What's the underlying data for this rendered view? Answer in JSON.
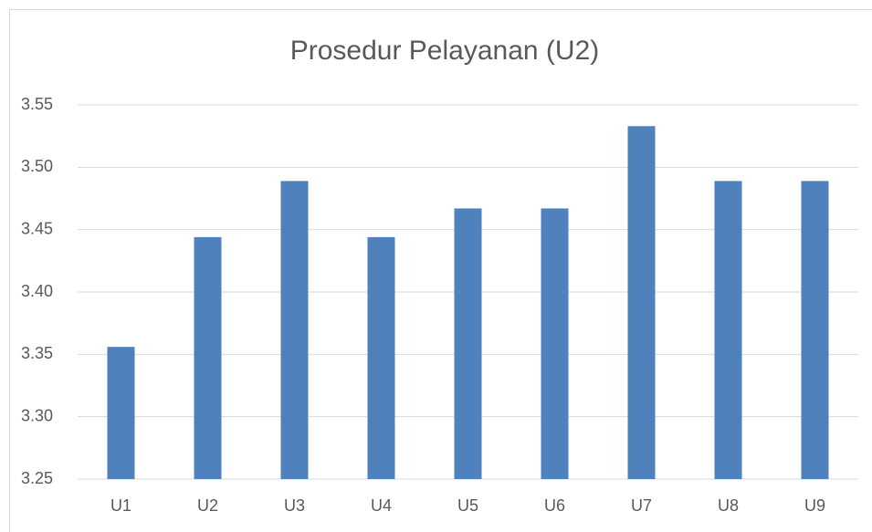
{
  "chart_data": {
    "type": "bar",
    "title": "Prosedur Pelayanan (U2)",
    "categories": [
      "U1",
      "U2",
      "U3",
      "U4",
      "U5",
      "U6",
      "U7",
      "U8",
      "U9"
    ],
    "values": [
      3.356,
      3.444,
      3.489,
      3.444,
      3.467,
      3.467,
      3.533,
      3.489,
      3.489
    ],
    "color": "#4f81bd",
    "ylim": [
      3.25,
      3.55
    ],
    "yticks": [
      3.25,
      {
        "value": 3.3,
        "label": "3.30"
      },
      3.35,
      {
        "value": 3.4,
        "label": "3.40"
      },
      3.45,
      {
        "value": 3.5,
        "label": "3.50"
      },
      3.55
    ],
    "grid": true
  }
}
